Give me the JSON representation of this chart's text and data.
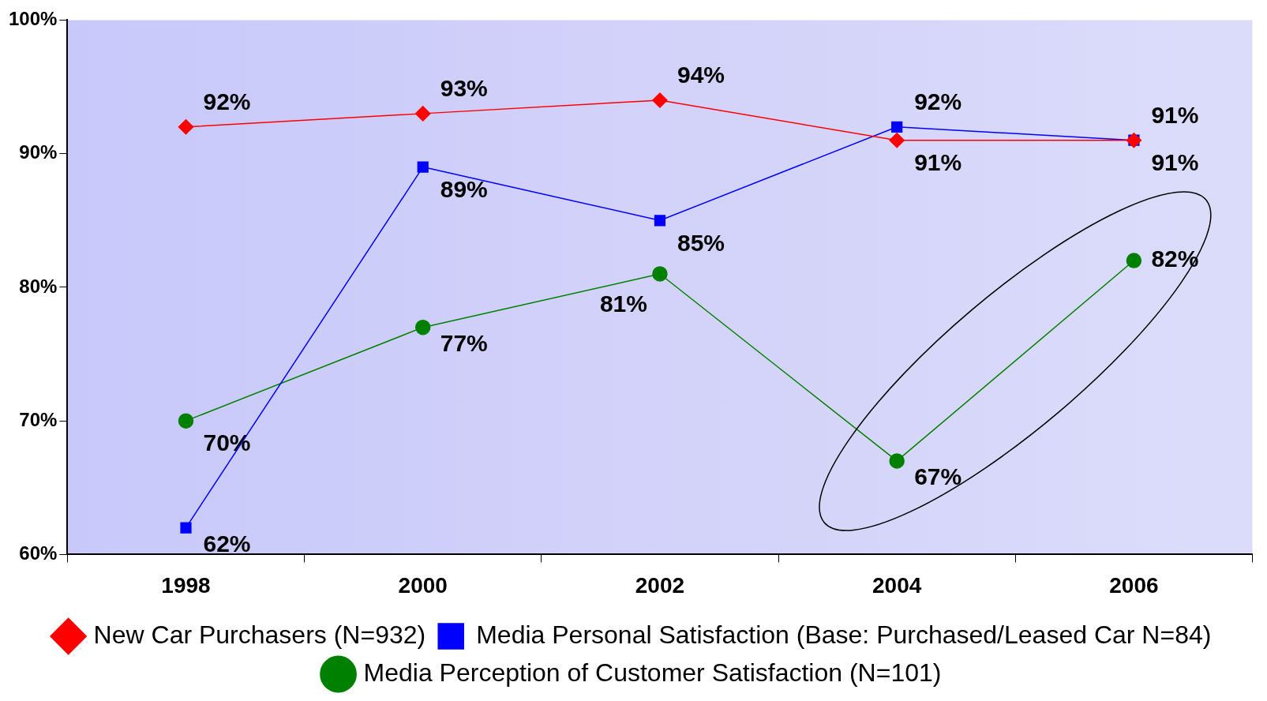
{
  "chart_data": {
    "type": "line",
    "categories": [
      "1998",
      "2000",
      "2002",
      "2004",
      "2006"
    ],
    "ylim": [
      60,
      100
    ],
    "yticks": [
      {
        "value": 60,
        "label": "60%"
      },
      {
        "value": 70,
        "label": "70%"
      },
      {
        "value": 80,
        "label": "80%"
      },
      {
        "value": 90,
        "label": "90%"
      },
      {
        "value": 100,
        "label": "100%"
      }
    ],
    "grid": false,
    "legend": "bottom",
    "series": [
      {
        "name": "New Car Purchasers (N=932)",
        "color": "#ff0000",
        "marker": "diamond",
        "values": [
          92,
          93,
          94,
          91,
          91
        ],
        "value_labels": [
          "92%",
          "93%",
          "94%",
          "91%",
          "91%"
        ]
      },
      {
        "name": "Media Personal Satisfaction (Base: Purchased/Leased Car N=84)",
        "color": "#0000ff",
        "marker": "square",
        "values": [
          62,
          89,
          85,
          92,
          91
        ],
        "value_labels": [
          "62%",
          "89%",
          "85%",
          "92%",
          "91%"
        ]
      },
      {
        "name": "Media Perception of Customer Satisfaction (N=101)",
        "color": "#008000",
        "marker": "circle",
        "values": [
          70,
          77,
          81,
          67,
          82
        ],
        "value_labels": [
          "70%",
          "77%",
          "81%",
          "67%",
          "82%"
        ]
      }
    ]
  }
}
